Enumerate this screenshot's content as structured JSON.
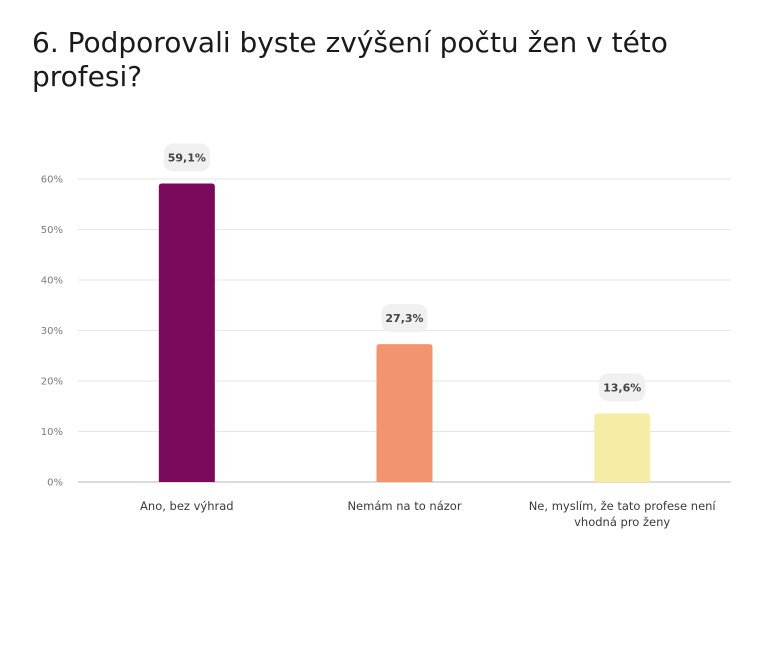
{
  "title": "6. Podporovali byste zvýšení počtu žen v této profesi?",
  "chart_data": {
    "type": "bar",
    "title": "6. Podporovali byste zvýšení počtu žen v této profesi?",
    "categories": [
      [
        "Ano, bez výhrad"
      ],
      [
        "Nemám na to názor"
      ],
      [
        "Ne, myslím, že tato profese není",
        "vhodná pro ženy"
      ]
    ],
    "values": [
      59.1,
      27.3,
      13.6
    ],
    "value_labels": [
      "59,1%",
      "27,3%",
      "13,6%"
    ],
    "colors": [
      "#7a0a5c",
      "#f2956f",
      "#f7eca5"
    ],
    "ylim": [
      0,
      60
    ],
    "yticks": [
      0,
      10,
      20,
      30,
      40,
      50,
      60
    ],
    "ytick_labels": [
      "0%",
      "10%",
      "20%",
      "30%",
      "40%",
      "50%",
      "60%"
    ],
    "grid": true,
    "xlabel": "",
    "ylabel": ""
  }
}
